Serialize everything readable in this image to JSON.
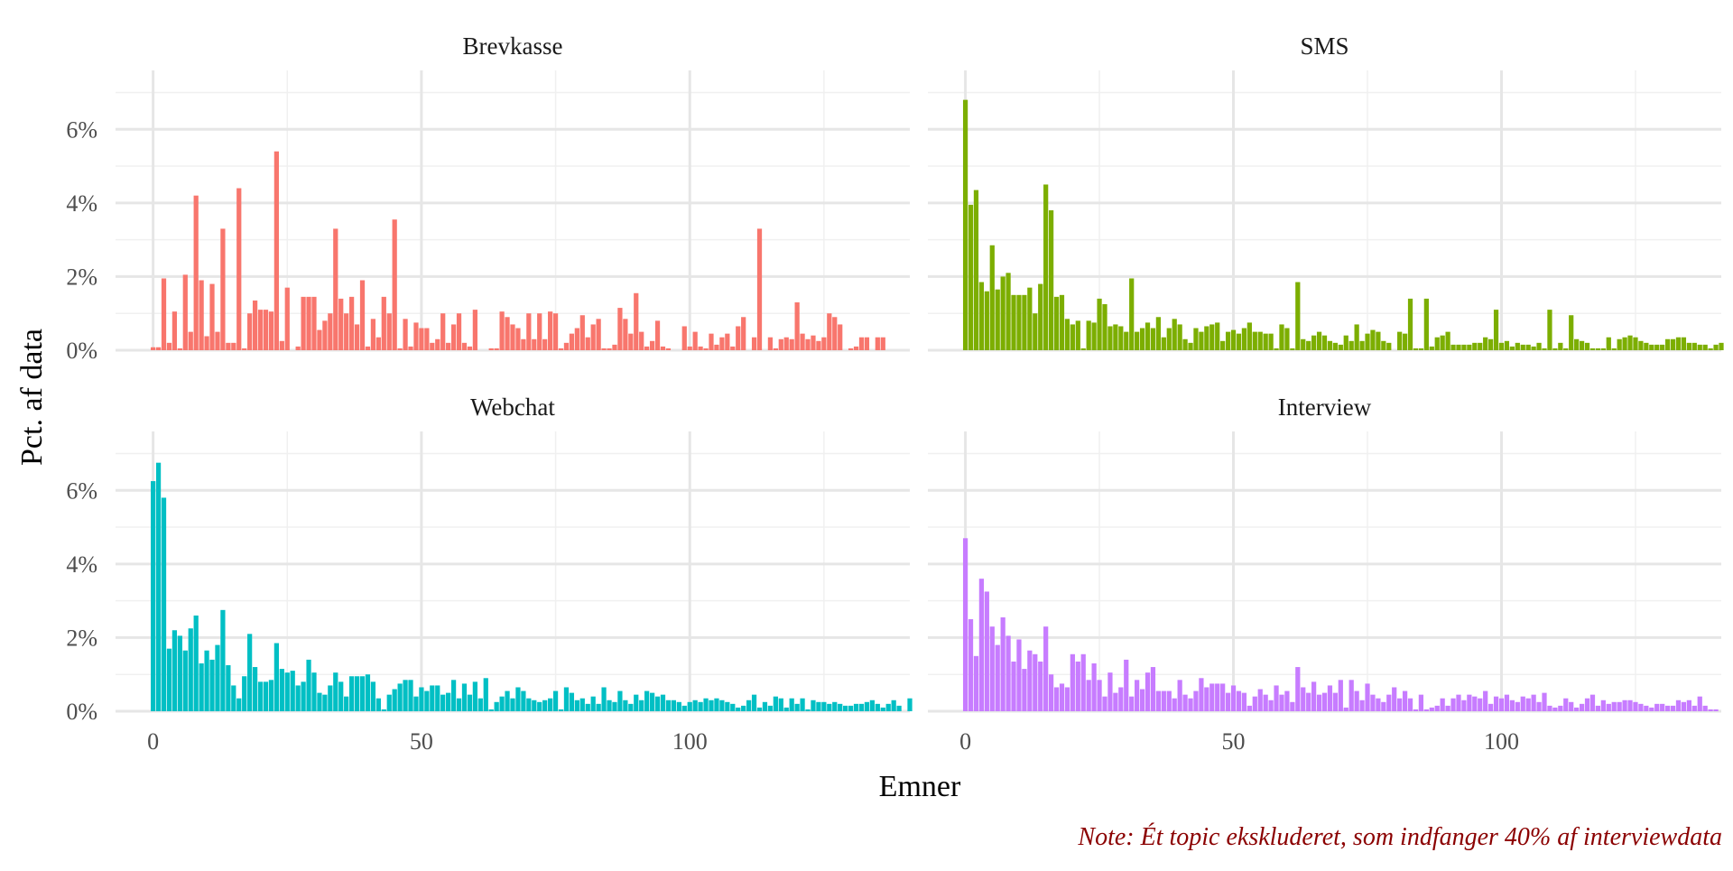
{
  "chart_data": {
    "type": "bar",
    "xlabel": "Emner",
    "ylabel": "Pct. af data",
    "caption": "Note: Ét topic ekskluderet, som indfanger 40% af interviewdata",
    "x_ticks": [
      0,
      50,
      100
    ],
    "y_ticks": [
      "0%",
      "2%",
      "4%",
      "6%"
    ],
    "xlim": [
      -7,
      141
    ],
    "ylim": [
      0,
      7.6
    ],
    "grid": true,
    "legend": "none",
    "panels": [
      {
        "name": "Brevkasse",
        "color": "#F8766D",
        "x_start": 0,
        "values": [
          0.08,
          0.08,
          1.95,
          0.2,
          1.05,
          0.05,
          2.05,
          0.5,
          4.2,
          1.9,
          0.38,
          1.8,
          0.5,
          3.3,
          0.2,
          0.2,
          4.4,
          0.05,
          1.0,
          1.35,
          1.1,
          1.1,
          1.05,
          5.4,
          0.25,
          1.7,
          0.0,
          0.1,
          1.45,
          1.45,
          1.45,
          0.55,
          0.8,
          1.0,
          3.3,
          1.4,
          1.0,
          1.45,
          0.7,
          1.9,
          0.1,
          0.85,
          0.35,
          1.45,
          1.0,
          3.55,
          0.05,
          0.85,
          0.1,
          0.75,
          0.6,
          0.6,
          0.2,
          0.3,
          1.0,
          0.2,
          0.7,
          1.0,
          0.2,
          0.1,
          1.1,
          0.0,
          0.0,
          0.05,
          0.05,
          1.05,
          0.9,
          0.7,
          0.6,
          0.3,
          1.0,
          0.3,
          1.0,
          0.3,
          1.05,
          1.0,
          0.05,
          0.2,
          0.45,
          0.6,
          0.95,
          0.35,
          0.7,
          0.85,
          0.05,
          0.05,
          0.15,
          1.15,
          0.85,
          0.45,
          1.55,
          0.5,
          0.1,
          0.25,
          0.8,
          0.1,
          0.05,
          0.0,
          0.0,
          0.65,
          0.1,
          0.5,
          0.1,
          0.05,
          0.45,
          0.15,
          0.35,
          0.45,
          0.1,
          0.65,
          0.9,
          0.0,
          0.35,
          3.3,
          0.0,
          0.35,
          0.05,
          0.3,
          0.35,
          0.3,
          1.3,
          0.45,
          0.3,
          0.4,
          0.25,
          0.35,
          1.0,
          0.9,
          0.7,
          0.0,
          0.05,
          0.1,
          0.35,
          0.35,
          0.0,
          0.35,
          0.35
        ]
      },
      {
        "name": "SMS",
        "color": "#7CAE00",
        "x_start": 0,
        "values": [
          6.8,
          3.95,
          4.35,
          1.85,
          1.6,
          2.85,
          1.65,
          2.0,
          2.1,
          1.5,
          1.5,
          1.5,
          1.7,
          1.0,
          1.8,
          4.5,
          3.8,
          1.45,
          1.5,
          0.85,
          0.7,
          0.8,
          0.05,
          0.8,
          0.75,
          1.4,
          1.25,
          0.65,
          0.7,
          0.65,
          0.5,
          1.95,
          0.5,
          0.6,
          0.75,
          0.6,
          0.9,
          0.35,
          0.6,
          0.85,
          0.7,
          0.3,
          0.2,
          0.6,
          0.5,
          0.65,
          0.7,
          0.75,
          0.25,
          0.5,
          0.55,
          0.45,
          0.6,
          0.75,
          0.5,
          0.5,
          0.45,
          0.45,
          0.05,
          0.7,
          0.6,
          0.05,
          1.85,
          0.3,
          0.25,
          0.4,
          0.5,
          0.4,
          0.25,
          0.2,
          0.15,
          0.4,
          0.25,
          0.7,
          0.25,
          0.45,
          0.55,
          0.5,
          0.25,
          0.2,
          0.0,
          0.5,
          0.45,
          1.4,
          0.05,
          0.05,
          1.4,
          0.1,
          0.35,
          0.4,
          0.5,
          0.15,
          0.15,
          0.15,
          0.15,
          0.2,
          0.2,
          0.35,
          0.3,
          1.1,
          0.2,
          0.25,
          0.1,
          0.2,
          0.15,
          0.15,
          0.1,
          0.2,
          0.05,
          1.1,
          0.05,
          0.2,
          0.05,
          0.95,
          0.3,
          0.25,
          0.2,
          0.05,
          0.05,
          0.05,
          0.35,
          0.05,
          0.3,
          0.35,
          0.4,
          0.35,
          0.25,
          0.2,
          0.15,
          0.15,
          0.15,
          0.3,
          0.3,
          0.35,
          0.35,
          0.2,
          0.2,
          0.15,
          0.15,
          0.05,
          0.15,
          0.2
        ]
      },
      {
        "name": "Webchat",
        "color": "#00BFC4",
        "x_start": 0,
        "values": [
          6.25,
          6.75,
          5.8,
          1.7,
          2.2,
          2.05,
          1.65,
          2.25,
          2.6,
          1.3,
          1.65,
          1.4,
          1.8,
          2.75,
          1.25,
          0.7,
          0.35,
          0.95,
          2.1,
          1.2,
          0.8,
          0.8,
          0.85,
          1.85,
          1.15,
          1.05,
          1.1,
          0.7,
          0.8,
          1.4,
          1.05,
          0.5,
          0.45,
          0.7,
          1.05,
          0.8,
          0.4,
          0.95,
          0.95,
          0.95,
          1.0,
          0.8,
          0.35,
          0.05,
          0.45,
          0.6,
          0.75,
          0.85,
          0.85,
          0.4,
          0.65,
          0.55,
          0.7,
          0.7,
          0.45,
          0.5,
          0.85,
          0.35,
          0.75,
          0.45,
          0.8,
          0.35,
          0.9,
          0.05,
          0.25,
          0.4,
          0.55,
          0.35,
          0.65,
          0.55,
          0.35,
          0.3,
          0.25,
          0.3,
          0.35,
          0.55,
          0.05,
          0.65,
          0.5,
          0.3,
          0.35,
          0.2,
          0.4,
          0.2,
          0.65,
          0.3,
          0.25,
          0.55,
          0.3,
          0.2,
          0.45,
          0.3,
          0.55,
          0.5,
          0.4,
          0.45,
          0.3,
          0.3,
          0.25,
          0.15,
          0.25,
          0.3,
          0.25,
          0.35,
          0.3,
          0.35,
          0.3,
          0.25,
          0.2,
          0.1,
          0.15,
          0.3,
          0.45,
          0.1,
          0.25,
          0.15,
          0.4,
          0.35,
          0.1,
          0.35,
          0.2,
          0.35,
          0.05,
          0.3,
          0.25,
          0.25,
          0.2,
          0.25,
          0.2,
          0.15,
          0.15,
          0.2,
          0.2,
          0.25,
          0.3,
          0.2,
          0.1,
          0.2,
          0.3,
          0.15,
          0.0,
          0.35
        ]
      },
      {
        "name": "Interview",
        "color": "#C77CFF",
        "x_start": 0,
        "values": [
          4.7,
          2.5,
          1.5,
          3.6,
          3.25,
          2.3,
          1.8,
          2.55,
          2.05,
          1.35,
          1.95,
          1.15,
          1.65,
          1.55,
          1.35,
          2.3,
          1.0,
          0.65,
          0.75,
          0.65,
          1.55,
          1.35,
          1.55,
          0.85,
          1.3,
          0.85,
          0.4,
          1.05,
          0.5,
          0.65,
          1.4,
          0.4,
          0.85,
          0.6,
          1.05,
          1.2,
          0.55,
          0.55,
          0.55,
          0.35,
          0.85,
          0.45,
          0.35,
          0.55,
          0.9,
          0.65,
          0.75,
          0.75,
          0.75,
          0.5,
          0.7,
          0.55,
          0.5,
          0.15,
          0.4,
          0.6,
          0.45,
          0.3,
          0.7,
          0.45,
          0.55,
          0.25,
          1.2,
          0.65,
          0.5,
          0.8,
          0.45,
          0.5,
          0.7,
          0.5,
          0.85,
          0.1,
          0.85,
          0.55,
          0.3,
          0.75,
          0.45,
          0.35,
          0.25,
          0.45,
          0.65,
          0.35,
          0.55,
          0.35,
          0.05,
          0.45,
          0.05,
          0.1,
          0.15,
          0.35,
          0.15,
          0.35,
          0.45,
          0.3,
          0.45,
          0.4,
          0.35,
          0.55,
          0.2,
          0.4,
          0.35,
          0.45,
          0.3,
          0.25,
          0.4,
          0.35,
          0.45,
          0.25,
          0.5,
          0.15,
          0.1,
          0.15,
          0.35,
          0.25,
          0.1,
          0.2,
          0.35,
          0.45,
          0.15,
          0.3,
          0.2,
          0.25,
          0.25,
          0.3,
          0.3,
          0.25,
          0.2,
          0.15,
          0.1,
          0.2,
          0.2,
          0.15,
          0.15,
          0.3,
          0.25,
          0.3,
          0.15,
          0.4,
          0.15,
          0.05,
          0.05
        ]
      }
    ]
  }
}
